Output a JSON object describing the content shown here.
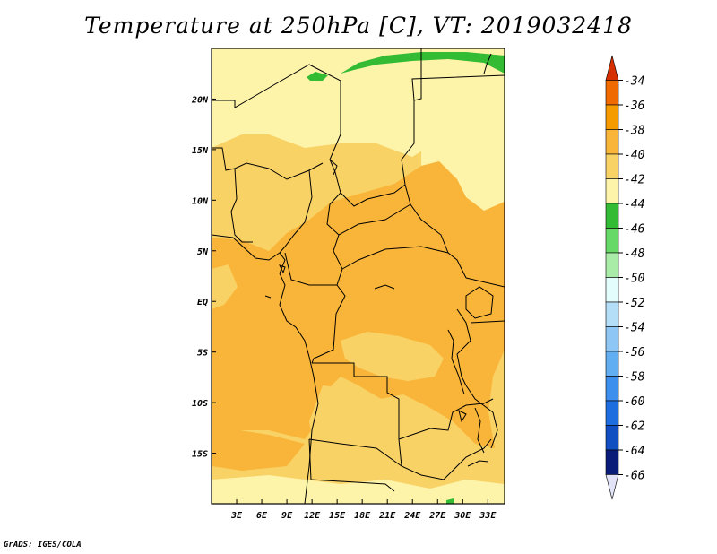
{
  "title": "Temperature at 250hPa [C], VT: 2019032418",
  "credit": "GrADS: IGES/COLA",
  "map": {
    "lon_range": [
      0,
      35
    ],
    "lat_range": [
      -20,
      25
    ],
    "x_ticks": [
      {
        "lon": 3,
        "label": "3E"
      },
      {
        "lon": 6,
        "label": "6E"
      },
      {
        "lon": 9,
        "label": "9E"
      },
      {
        "lon": 12,
        "label": "12E"
      },
      {
        "lon": 15,
        "label": "15E"
      },
      {
        "lon": 18,
        "label": "18E"
      },
      {
        "lon": 21,
        "label": "21E"
      },
      {
        "lon": 24,
        "label": "24E"
      },
      {
        "lon": 27,
        "label": "27E"
      },
      {
        "lon": 30,
        "label": "30E"
      },
      {
        "lon": 33,
        "label": "33E"
      }
    ],
    "y_ticks": [
      {
        "lat": 20,
        "label": "20N"
      },
      {
        "lat": 15,
        "label": "15N"
      },
      {
        "lat": 10,
        "label": "10N"
      },
      {
        "lat": 5,
        "label": "5N"
      },
      {
        "lat": 0,
        "label": "EQ"
      },
      {
        "lat": -5,
        "label": "5S"
      },
      {
        "lat": -10,
        "label": "10S"
      },
      {
        "lat": -15,
        "label": "15S"
      }
    ]
  },
  "colorbar": {
    "levels": [
      "-34",
      "-36",
      "-38",
      "-40",
      "-42",
      "-44",
      "-46",
      "-48",
      "-50",
      "-52",
      "-54",
      "-56",
      "-58",
      "-60",
      "-62",
      "-64",
      "-66"
    ],
    "colors": [
      "#d63000",
      "#ef6a00",
      "#f59b00",
      "#f9b539",
      "#f9d266",
      "#fdf3a9",
      "#33bb33",
      "#66d966",
      "#a8eca8",
      "#e3fcfc",
      "#b4def8",
      "#8ec7f5",
      "#62aef2",
      "#3c8fec",
      "#1e6ee0",
      "#0f4fc2",
      "#091c78",
      "#e3e3f7"
    ]
  },
  "chart_data": {
    "type": "heatmap",
    "title": "Temperature at 250hPa [C], VT: 2019032418",
    "xlabel": "",
    "ylabel": "",
    "x_range_deg_east": [
      0,
      35
    ],
    "y_range_deg_north": [
      -20,
      25
    ],
    "colorbar_levels_C": [
      -34,
      -36,
      -38,
      -40,
      -42,
      -44,
      -46,
      -48,
      -50,
      -52,
      -54,
      -56,
      -58,
      -60,
      -62,
      -64,
      -66
    ]
  }
}
